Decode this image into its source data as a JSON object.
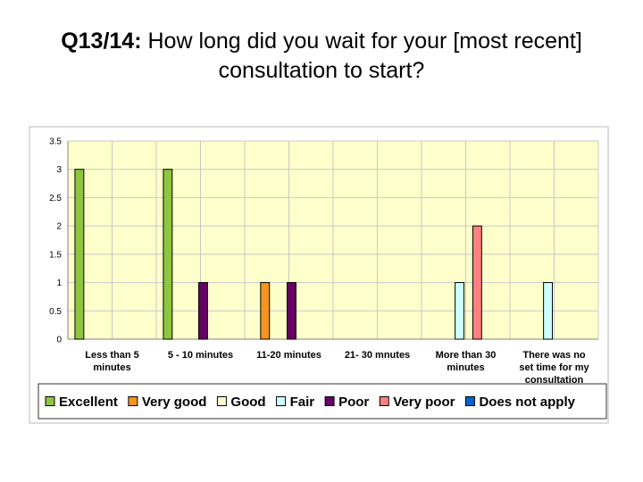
{
  "title": {
    "prefix": "Q13/14:",
    "text": "How long did you wait for your [most recent] consultation to start?"
  },
  "chart_data": {
    "type": "bar",
    "categories": [
      [
        "Less than 5",
        "minutes"
      ],
      [
        "5 - 10 minutes"
      ],
      [
        "11-20 minutes"
      ],
      [
        "21- 30 mnutes"
      ],
      [
        "More than 30",
        "minutes"
      ],
      [
        "There was no",
        "set time for my",
        "consultation"
      ]
    ],
    "series": [
      {
        "name": "Excellent",
        "color": "#8dc63f",
        "values": [
          3,
          3,
          0,
          0,
          0,
          0
        ]
      },
      {
        "name": "Very good",
        "color": "#f7941d",
        "values": [
          0,
          0,
          1,
          0,
          0,
          0
        ]
      },
      {
        "name": "Good",
        "color": "#ffffcc",
        "values": [
          0,
          0,
          0,
          0,
          0,
          0
        ]
      },
      {
        "name": "Fair",
        "color": "#ccffff",
        "values": [
          0,
          0,
          0,
          0,
          1,
          1
        ]
      },
      {
        "name": "Poor",
        "color": "#660066",
        "values": [
          0,
          1,
          1,
          0,
          0,
          0
        ]
      },
      {
        "name": "Very poor",
        "color": "#ff8080",
        "values": [
          0,
          0,
          0,
          0,
          2,
          0
        ]
      },
      {
        "name": "Does not apply",
        "color": "#0066cc",
        "values": [
          0,
          0,
          0,
          0,
          0,
          0
        ]
      }
    ],
    "yticks": [
      "0",
      "0.5",
      "1",
      "1.5",
      "2",
      "2.5",
      "3",
      "3.5"
    ],
    "ylim": [
      0,
      3.5
    ],
    "grid": true,
    "legend_position": "bottom",
    "plot_background": "#ffffcc"
  }
}
